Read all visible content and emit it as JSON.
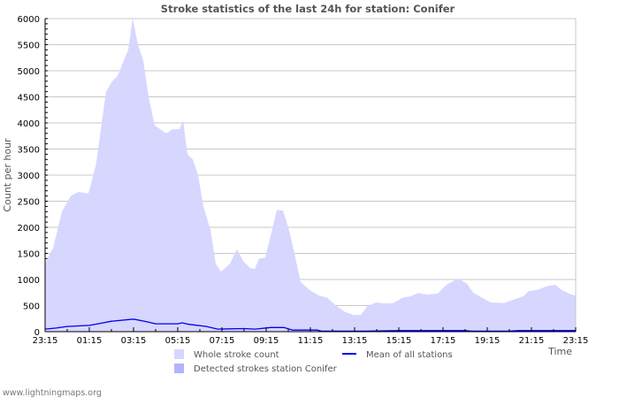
{
  "chart_data": {
    "type": "area",
    "title": "Stroke statistics of the last 24h for station: Conifer",
    "xlabel": "Time",
    "ylabel": "Count per hour",
    "ylim": [
      0,
      6000
    ],
    "yticks": [
      0,
      500,
      1000,
      1500,
      2000,
      2500,
      3000,
      3500,
      4000,
      4500,
      5000,
      5500,
      6000
    ],
    "xlim_hours_since_start": [
      0,
      24
    ],
    "xtick_labels": [
      "23:15",
      "01:15",
      "03:15",
      "05:15",
      "07:15",
      "09:15",
      "11:15",
      "13:15",
      "15:15",
      "17:15",
      "19:15",
      "21:15",
      "23:15"
    ],
    "grid": true,
    "legend_placement": "bottom",
    "series": [
      {
        "name": "Whole stroke count",
        "kind": "area",
        "color": "#d6d6ff",
        "x": [
          0,
          0.36,
          0.76,
          1.16,
          1.5,
          1.96,
          2.3,
          2.56,
          2.76,
          3.04,
          3.28,
          3.56,
          3.76,
          3.96,
          4.2,
          4.44,
          4.68,
          4.96,
          5.48,
          5.76,
          6.08,
          6.24,
          6.44,
          6.68,
          6.92,
          7.16,
          7.48,
          7.72,
          7.96,
          8.36,
          8.68,
          8.96,
          9.28,
          9.48,
          9.68,
          9.96,
          10.24,
          10.48,
          10.76,
          11,
          11.28,
          11.56,
          11.96,
          12.36,
          12.76,
          13.16,
          13.56,
          13.96,
          14.28,
          14.56,
          14.96,
          15.36,
          15.76,
          16.16,
          16.56,
          16.88,
          17.28,
          17.76,
          18.16,
          18.68,
          19.08,
          19.36,
          19.88,
          20.16,
          20.76,
          21.24,
          21.64,
          21.88,
          22.28,
          22.68,
          23.08,
          23.36,
          23.76,
          24
        ],
        "values": [
          1320,
          1600,
          2300,
          2600,
          2680,
          2650,
          3200,
          4000,
          4600,
          4800,
          4900,
          5200,
          5400,
          6000,
          5500,
          5200,
          4500,
          3950,
          3800,
          3880,
          3880,
          4050,
          3400,
          3300,
          3000,
          2400,
          1950,
          1300,
          1150,
          1300,
          1580,
          1350,
          1220,
          1200,
          1400,
          1420,
          1900,
          2330,
          2320,
          2000,
          1500,
          950,
          800,
          700,
          650,
          500,
          380,
          320,
          320,
          480,
          560,
          540,
          550,
          650,
          680,
          740,
          710,
          730,
          900,
          1020,
          920,
          750,
          620,
          560,
          550,
          620,
          680,
          780,
          800,
          870,
          900,
          800,
          720,
          690
        ]
      },
      {
        "name": "Detected strokes station Conifer",
        "kind": "area",
        "color": "#b3b3ff",
        "x": [],
        "values": []
      },
      {
        "name": "Mean of all stations",
        "kind": "line",
        "color": "#0000ee",
        "x": [
          0,
          0.5,
          1,
          2,
          2.5,
          3,
          4,
          4.5,
          5,
          6,
          6.2,
          6.5,
          7.3,
          7.8,
          9,
          9.5,
          10.2,
          10.8,
          11.2,
          12.3,
          12.5,
          14.5,
          16,
          19,
          19.3,
          21,
          21.4,
          24
        ],
        "values": [
          50,
          70,
          100,
          120,
          160,
          200,
          240,
          200,
          150,
          150,
          170,
          140,
          100,
          50,
          60,
          50,
          80,
          80,
          30,
          30,
          10,
          10,
          20,
          20,
          10,
          10,
          20,
          20
        ]
      }
    ]
  },
  "credit": "www.lightningmaps.org"
}
